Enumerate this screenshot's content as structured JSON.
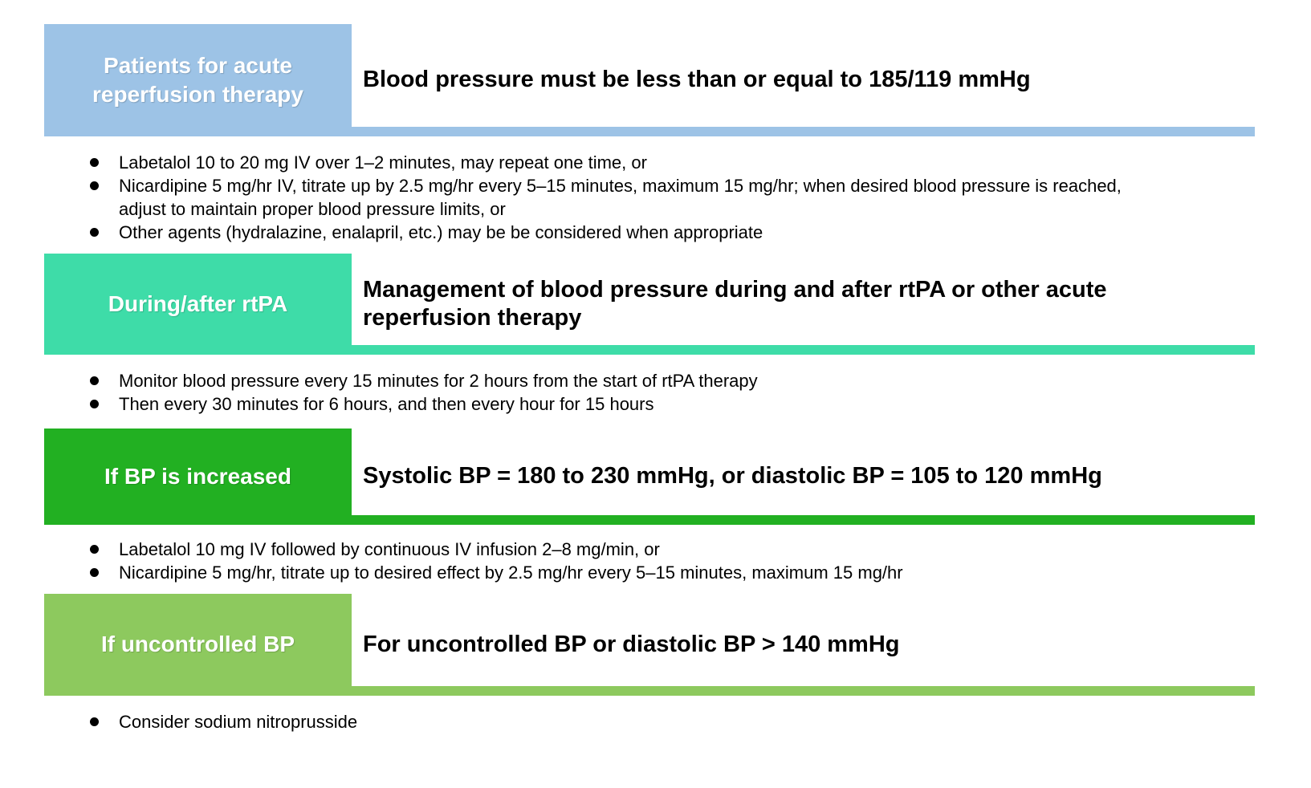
{
  "page": {
    "background": "#ffffff",
    "text_color": "#000000",
    "label_text_color": "#ffffff"
  },
  "sections": [
    {
      "id": "patients-for-acute-reperfusion-therapy",
      "color": "#9DC3E6",
      "label": "Patients for acute reperfusion therapy",
      "header": "Blood pressure must be less than or equal to 185/119 mmHg",
      "bullets": [
        "Labetalol 10 to 20 mg IV over 1–2 minutes, may repeat one time, or",
        "Nicardipine 5 mg/hr IV, titrate up by 2.5 mg/hr every 5–15 minutes, maximum 15 mg/hr; when desired blood pressure is reached, adjust to maintain proper blood pressure limits, or",
        "Other agents (hydralazine, enalapril, etc.) may be be considered when appropriate"
      ]
    },
    {
      "id": "during-after-rtpa",
      "color": "#3EDCA8",
      "label": "During/after rtPA",
      "header": "Management of blood pressure during and after rtPA or other acute\nreperfusion therapy",
      "bullets": [
        "Monitor blood pressure every 15 minutes for 2 hours from the start of rtPA therapy",
        "Then every 30 minutes for 6 hours, and then every hour for 15 hours"
      ]
    },
    {
      "id": "if-bp-is-increased",
      "color": "#22B022",
      "label": "If BP is increased",
      "header": "Systolic BP = 180 to 230 mmHg, or diastolic BP = 105 to 120 mmHg",
      "bullets": [
        "Labetalol 10 mg IV followed by continuous IV infusion 2–8 mg/min, or",
        "Nicardipine 5 mg/hr, titrate up to desired effect by 2.5 mg/hr every 5–15 minutes, maximum 15 mg/hr"
      ]
    },
    {
      "id": "if-uncontrolled-bp",
      "color": "#8DC95E",
      "label": "If uncontrolled BP",
      "header": "For uncontrolled BP or diastolic BP > 140 mmHg",
      "bullets": [
        "Consider sodium nitroprusside"
      ]
    }
  ]
}
